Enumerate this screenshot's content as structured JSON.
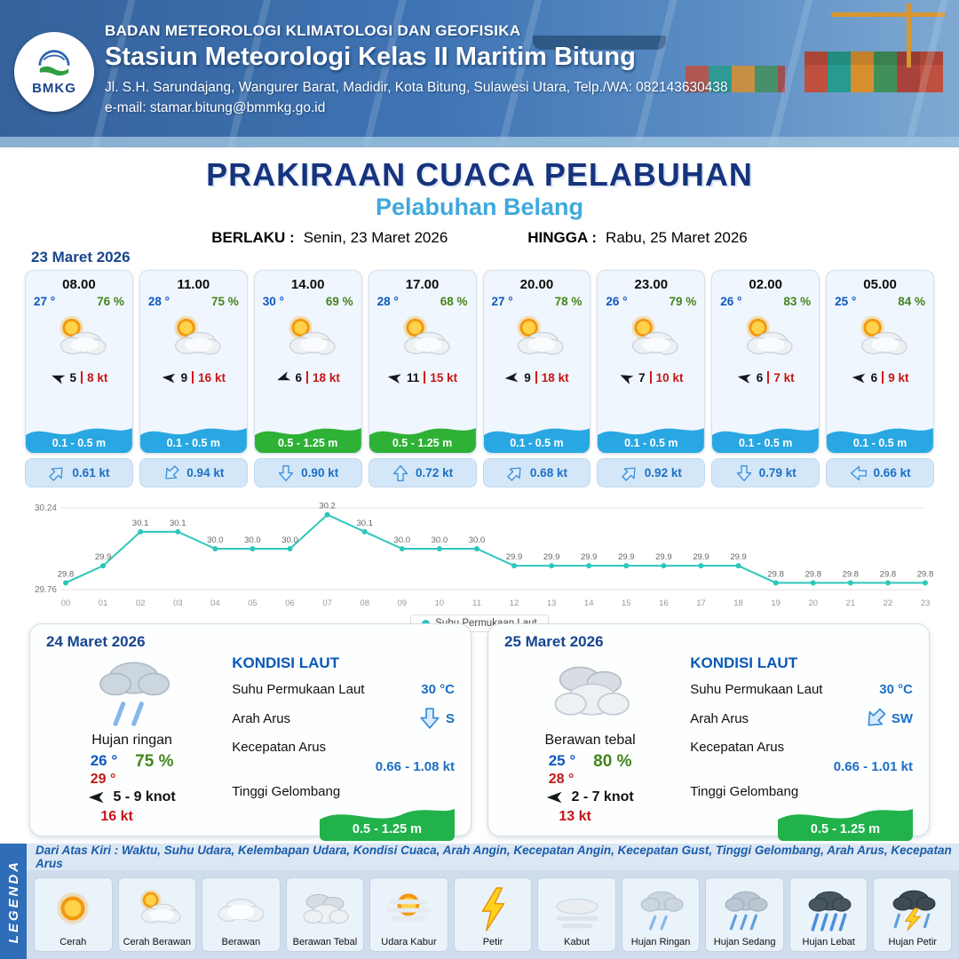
{
  "header": {
    "org": "BADAN METEOROLOGI KLIMATOLOGI DAN GEOFISIKA",
    "station": "Stasiun Meteorologi Kelas II Maritim Bitung",
    "address": "Jl. S.H. Sarundajang, Wangurer Barat, Madidir, Kota Bitung, Sulawesi Utara, Telp./WA: 082143630438",
    "email": "e-mail: stamar.bitung@bmmkg.go.id",
    "logo_text": "BMKG"
  },
  "title": {
    "main": "PRAKIRAAN CUACA PELABUHAN",
    "sub": "Pelabuhan Belang",
    "valid_from_label": "BERLAKU :",
    "valid_from": "Senin, 23 Maret 2026",
    "valid_to_label": "HINGGA :",
    "valid_to": "Rabu, 25 Maret 2026"
  },
  "day1": {
    "date": "23 Maret 2026",
    "cards": [
      {
        "time": "08.00",
        "temp": "27 °",
        "rh": "76 %",
        "icon": "cerah-berawan",
        "wind_dir": 200,
        "wind": "5",
        "gust": "8 kt",
        "wave": "0.1 - 0.5 m",
        "wave_color": "blue",
        "cur_dir": 45,
        "current": "0.61 kt"
      },
      {
        "time": "11.00",
        "temp": "28 °",
        "rh": "75 %",
        "icon": "cerah-berawan",
        "wind_dir": 185,
        "wind": "9",
        "gust": "16 kt",
        "wave": "0.1 - 0.5 m",
        "wave_color": "blue",
        "cur_dir": 225,
        "current": "0.94 kt"
      },
      {
        "time": "14.00",
        "temp": "30 °",
        "rh": "69 %",
        "icon": "cerah-berawan",
        "wind_dir": 160,
        "wind": "6",
        "gust": "18 kt",
        "wave": "0.5 - 1.25 m",
        "wave_color": "green",
        "cur_dir": 180,
        "current": "0.90 kt"
      },
      {
        "time": "17.00",
        "temp": "28 °",
        "rh": "68 %",
        "icon": "cerah-berawan",
        "wind_dir": 190,
        "wind": "11",
        "gust": "15 kt",
        "wave": "0.5 - 1.25 m",
        "wave_color": "green",
        "cur_dir": 0,
        "current": "0.72 kt"
      },
      {
        "time": "20.00",
        "temp": "27 °",
        "rh": "78 %",
        "icon": "cerah-berawan",
        "wind_dir": 175,
        "wind": "9",
        "gust": "18 kt",
        "wave": "0.1 - 0.5 m",
        "wave_color": "blue",
        "cur_dir": 45,
        "current": "0.68 kt"
      },
      {
        "time": "23.00",
        "temp": "26 °",
        "rh": "79 %",
        "icon": "cerah-berawan",
        "wind_dir": 205,
        "wind": "7",
        "gust": "10 kt",
        "wave": "0.1 - 0.5 m",
        "wave_color": "blue",
        "cur_dir": 45,
        "current": "0.92 kt"
      },
      {
        "time": "02.00",
        "temp": "26 °",
        "rh": "83 %",
        "icon": "cerah-berawan",
        "wind_dir": 190,
        "wind": "6",
        "gust": "7 kt",
        "wave": "0.1 - 0.5 m",
        "wave_color": "blue",
        "cur_dir": 180,
        "current": "0.79 kt"
      },
      {
        "time": "05.00",
        "temp": "25 °",
        "rh": "84 %",
        "icon": "cerah-berawan",
        "wind_dir": 185,
        "wind": "6",
        "gust": "9 kt",
        "wave": "0.1 - 0.5 m",
        "wave_color": "blue",
        "cur_dir": 270,
        "current": "0.66 kt"
      }
    ]
  },
  "chart_data": {
    "type": "line",
    "title": "Suhu Permukaan Laut",
    "legend": "Suhu Permukaan Laut",
    "x": [
      "00",
      "01",
      "02",
      "03",
      "04",
      "05",
      "06",
      "07",
      "08",
      "09",
      "10",
      "11",
      "12",
      "13",
      "14",
      "15",
      "16",
      "17",
      "18",
      "19",
      "20",
      "21",
      "22",
      "23"
    ],
    "values": [
      29.8,
      29.9,
      30.1,
      30.1,
      30.0,
      30.0,
      30.0,
      30.2,
      30.1,
      30.0,
      30.0,
      30.0,
      29.9,
      29.9,
      29.9,
      29.9,
      29.9,
      29.9,
      29.9,
      29.8,
      29.8,
      29.8,
      29.8,
      29.8
    ],
    "ylim": [
      29.76,
      30.24
    ],
    "line_color": "#2cc7b9",
    "grid": true,
    "legend_position": "bottom"
  },
  "day2": {
    "date": "24 Maret 2026",
    "condition": "Hujan ringan",
    "icon": "hujan-ringan",
    "temp_min": "26 °",
    "temp_max": "29 °",
    "rh": "75 %",
    "wind_dir": 180,
    "wind_range": "5 - 9 knot",
    "gust": "16 kt",
    "sea": {
      "heading": "KONDISI LAUT",
      "sst_label": "Suhu Permukaan Laut",
      "sst": "30 °C",
      "dir_label": "Arah Arus",
      "dir": "S",
      "dir_deg": 180,
      "speed_label": "Kecepatan Arus",
      "speed": "0.66 - 1.08 kt",
      "wave_label": "Tinggi Gelombang",
      "wave": "0.5 - 1.25 m"
    }
  },
  "day3": {
    "date": "25 Maret 2026",
    "condition": "Berawan tebal",
    "icon": "berawan-tebal",
    "temp_min": "25 °",
    "temp_max": "28 °",
    "rh": "80 %",
    "wind_dir": 180,
    "wind_range": "2 - 7 knot",
    "gust": "13 kt",
    "sea": {
      "heading": "KONDISI LAUT",
      "sst_label": "Suhu Permukaan Laut",
      "sst": "30 °C",
      "dir_label": "Arah Arus",
      "dir": "SW",
      "dir_deg": 225,
      "speed_label": "Kecepatan Arus",
      "speed": "0.66 - 1.01 kt",
      "wave_label": "Tinggi Gelombang",
      "wave": "0.5 - 1.25 m"
    }
  },
  "legend": {
    "title": "LEGENDA",
    "description": "Dari Atas Kiri : Waktu, Suhu Udara, Kelembapan Udara, Kondisi Cuaca, Arah Angin, Kecepatan Angin, Kecepatan Gust, Tinggi Gelombang, Arah Arus, Kecepatan Arus",
    "items": [
      {
        "label": "Cerah",
        "icon": "cerah"
      },
      {
        "label": "Cerah Berawan",
        "icon": "cerah-berawan"
      },
      {
        "label": "Berawan",
        "icon": "berawan"
      },
      {
        "label": "Berawan Tebal",
        "icon": "berawan-tebal"
      },
      {
        "label": "Udara Kabur",
        "icon": "udara-kabur"
      },
      {
        "label": "Petir",
        "icon": "petir"
      },
      {
        "label": "Kabut",
        "icon": "kabut"
      },
      {
        "label": "Hujan Ringan",
        "icon": "hujan-ringan"
      },
      {
        "label": "Hujan Sedang",
        "icon": "hujan-sedang"
      },
      {
        "label": "Hujan Lebat",
        "icon": "hujan-lebat"
      },
      {
        "label": "Hujan Petir",
        "icon": "hujan-petir"
      }
    ]
  }
}
